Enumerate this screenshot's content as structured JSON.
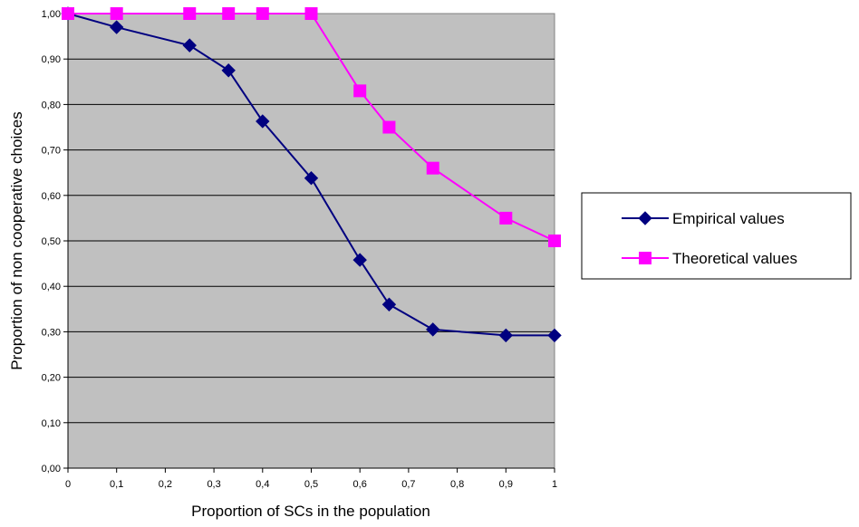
{
  "chart_data": {
    "type": "line",
    "title": "",
    "xlabel": "Proportion of SCs in the population",
    "ylabel": "Proportion of non cooperative choices",
    "x_ticks": [
      "0",
      "0,1",
      "0,2",
      "0,3",
      "0,4",
      "0,5",
      "0,6",
      "0,7",
      "0,8",
      "0,9",
      "1"
    ],
    "y_ticks": [
      "0,00",
      "0,10",
      "0,20",
      "0,30",
      "0,40",
      "0,50",
      "0,60",
      "0,70",
      "0,80",
      "0,90",
      "1,00"
    ],
    "xlim": [
      0,
      1
    ],
    "ylim": [
      0,
      1
    ],
    "grid": "horizontal",
    "legend_position": "right",
    "plot_background": "#c0c0c0",
    "series": [
      {
        "name": "Empirical values",
        "color": "#000080",
        "marker": "diamond",
        "x": [
          0,
          0.1,
          0.25,
          0.33,
          0.4,
          0.5,
          0.6,
          0.66,
          0.75,
          0.9,
          1
        ],
        "y": [
          1.0,
          0.97,
          0.93,
          0.875,
          0.763,
          0.638,
          0.458,
          0.36,
          0.305,
          0.292,
          0.292
        ]
      },
      {
        "name": "Theoretical values",
        "color": "#ff00ff",
        "marker": "square",
        "x": [
          0,
          0.1,
          0.25,
          0.33,
          0.4,
          0.5,
          0.6,
          0.66,
          0.75,
          0.9,
          1
        ],
        "y": [
          1.0,
          1.0,
          1.0,
          1.0,
          1.0,
          1.0,
          0.83,
          0.75,
          0.66,
          0.55,
          0.5
        ]
      }
    ]
  }
}
